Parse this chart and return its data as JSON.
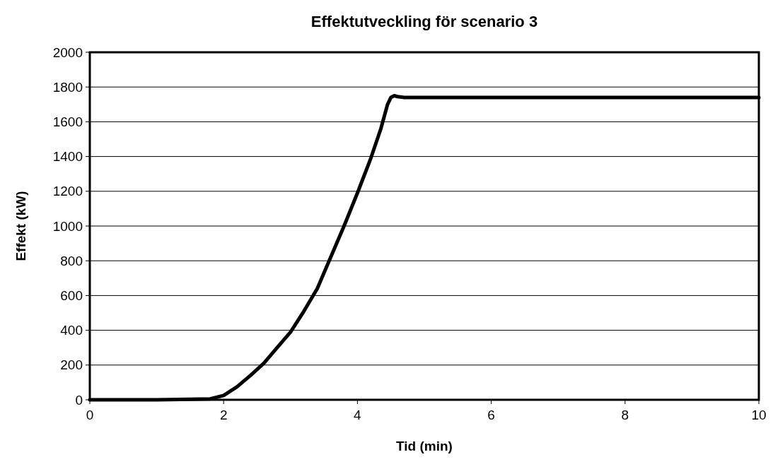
{
  "chart_data": {
    "type": "line",
    "title": "Effektutveckling för scenario 3",
    "xlabel": "Tid (min)",
    "ylabel": "Effekt (kW)",
    "x": [
      0,
      1,
      1.5,
      1.8,
      2,
      2.2,
      2.4,
      2.6,
      2.8,
      3,
      3.2,
      3.4,
      3.6,
      3.8,
      4,
      4.2,
      4.35,
      4.45,
      4.5,
      4.55,
      4.6,
      4.7,
      5,
      10
    ],
    "series": [
      {
        "color": "#000000",
        "values": [
          0,
          0,
          3,
          5,
          25,
          75,
          140,
          210,
          300,
          390,
          510,
          640,
          820,
          1000,
          1190,
          1390,
          1560,
          1700,
          1740,
          1750,
          1745,
          1740,
          1740,
          1740
        ]
      }
    ],
    "xlim": [
      0,
      10
    ],
    "xticks": [
      0,
      2,
      4,
      6,
      8,
      10
    ],
    "ylim": [
      0,
      2000
    ],
    "yticks": [
      0,
      200,
      400,
      600,
      800,
      1000,
      1200,
      1400,
      1600,
      1800,
      2000
    ],
    "grid": "y",
    "marker": "none",
    "line_style": "solid"
  }
}
